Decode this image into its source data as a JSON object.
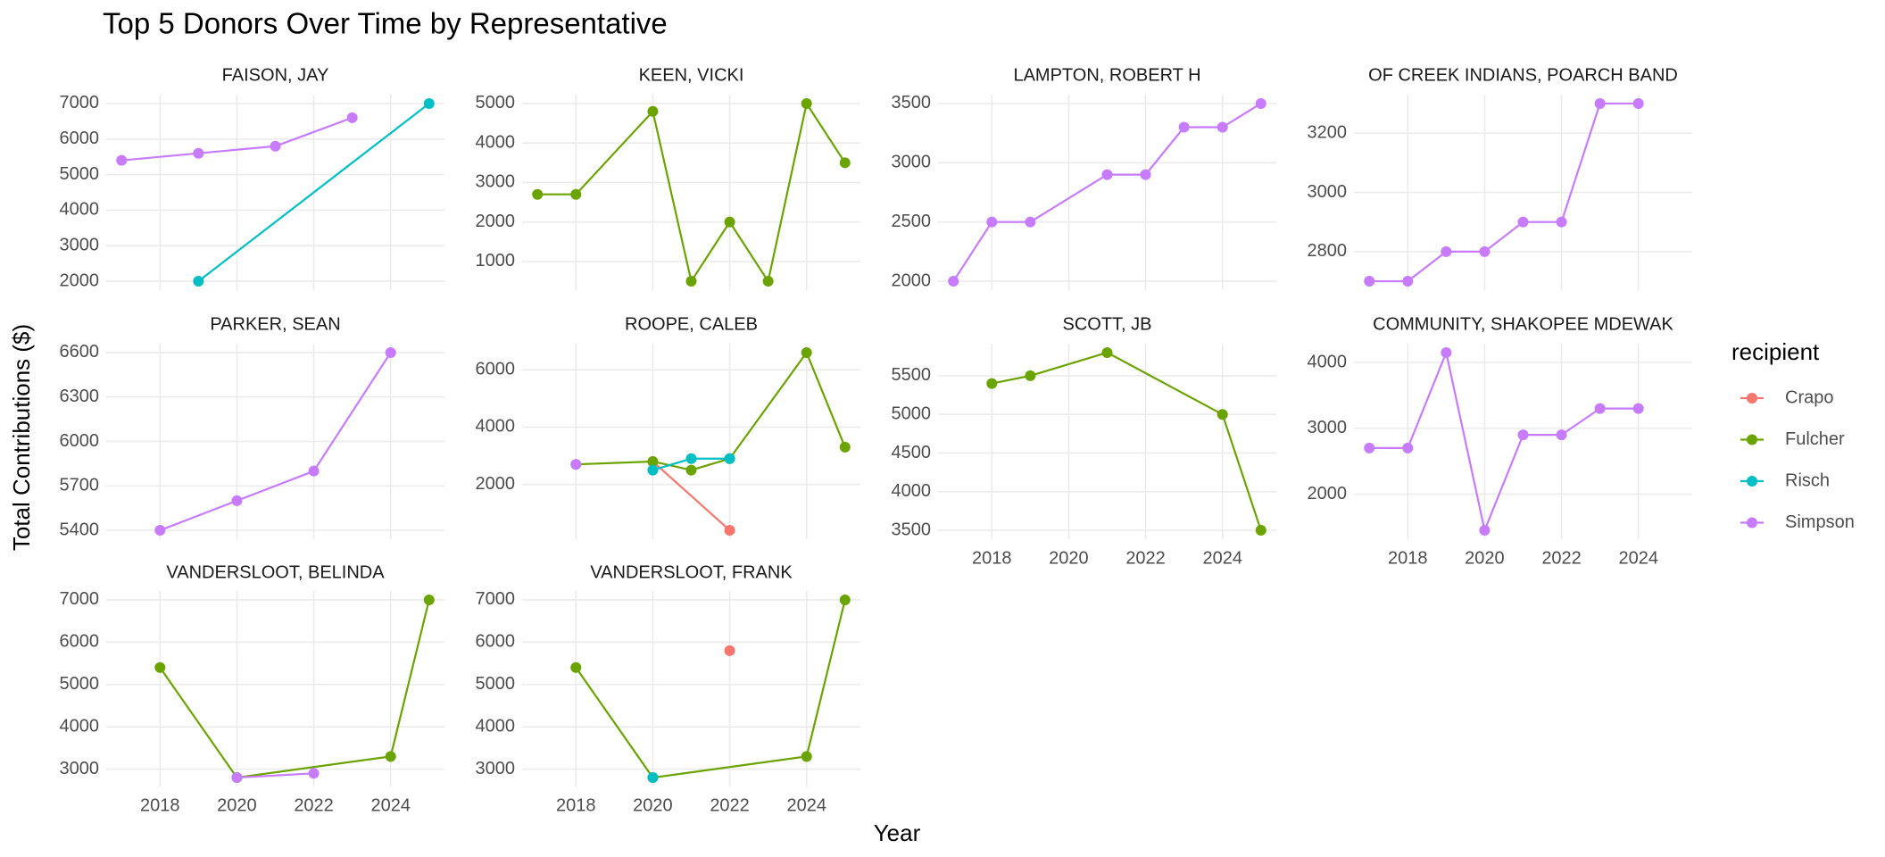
{
  "title": "Top 5 Donors Over Time by Representative",
  "xlabel": "Year",
  "ylabel": "Total Contributions ($)",
  "legend": {
    "title": "recipient",
    "items": [
      {
        "name": "Crapo",
        "color": "#F8766D"
      },
      {
        "name": "Fulcher",
        "color": "#6BA300"
      },
      {
        "name": "Risch",
        "color": "#00BFC4"
      },
      {
        "name": "Simpson",
        "color": "#C77CFF"
      }
    ]
  },
  "chart_data": [
    {
      "type": "line",
      "title": "FAISON, JAY",
      "xlim": [
        2016.6,
        2025.4
      ],
      "xticks": [
        2018,
        2020,
        2022,
        2024
      ],
      "show_xtick_labels": false,
      "ylim": [
        1750,
        7250
      ],
      "yticks": [
        2000,
        3000,
        4000,
        5000,
        6000,
        7000
      ],
      "series": [
        {
          "name": "Simpson",
          "color": "#C77CFF",
          "x": [
            2017,
            2019,
            2021,
            2023
          ],
          "values": [
            5400,
            5600,
            5800,
            6600
          ]
        },
        {
          "name": "Risch",
          "color": "#00BFC4",
          "x": [
            2019,
            2025
          ],
          "values": [
            2000,
            7000
          ]
        }
      ]
    },
    {
      "type": "line",
      "title": "KEEN, VICKI",
      "xlim": [
        2016.6,
        2025.4
      ],
      "xticks": [
        2018,
        2020,
        2022,
        2024
      ],
      "show_xtick_labels": false,
      "ylim": [
        275,
        5225
      ],
      "yticks": [
        1000,
        2000,
        3000,
        4000,
        5000
      ],
      "series": [
        {
          "name": "Fulcher",
          "color": "#6BA300",
          "x": [
            2017,
            2018,
            2020,
            2021,
            2022,
            2023,
            2024,
            2025
          ],
          "values": [
            2700,
            2700,
            4800,
            500,
            2000,
            500,
            5000,
            3500
          ]
        }
      ]
    },
    {
      "type": "line",
      "title": "LAMPTON, ROBERT H",
      "xlim": [
        2016.6,
        2025.4
      ],
      "xticks": [
        2018,
        2020,
        2022,
        2024
      ],
      "show_xtick_labels": false,
      "ylim": [
        1925,
        3575
      ],
      "yticks": [
        2000,
        2500,
        3000,
        3500
      ],
      "series": [
        {
          "name": "Simpson",
          "color": "#C77CFF",
          "x": [
            2017,
            2018,
            2019,
            2021,
            2022,
            2023,
            2024,
            2025
          ],
          "values": [
            2000,
            2500,
            2500,
            2900,
            2900,
            3300,
            3300,
            3500
          ]
        }
      ]
    },
    {
      "type": "line",
      "title": "OF CREEK INDIANS, POARCH BAND",
      "xlim": [
        2016.6,
        2025.4
      ],
      "xticks": [
        2018,
        2020,
        2022,
        2024
      ],
      "show_xtick_labels": false,
      "ylim": [
        2670,
        3330
      ],
      "yticks": [
        2800,
        3000,
        3200
      ],
      "series": [
        {
          "name": "Simpson",
          "color": "#C77CFF",
          "x": [
            2017,
            2018,
            2019,
            2020,
            2021,
            2022,
            2023,
            2024
          ],
          "values": [
            2700,
            2700,
            2800,
            2800,
            2900,
            2900,
            3300,
            3300
          ]
        }
      ]
    },
    {
      "type": "line",
      "title": "PARKER, SEAN",
      "xlim": [
        2016.6,
        2025.4
      ],
      "xticks": [
        2018,
        2020,
        2022,
        2024
      ],
      "show_xtick_labels": false,
      "ylim": [
        5340,
        6660
      ],
      "yticks": [
        5400,
        5700,
        6000,
        6300,
        6600
      ],
      "series": [
        {
          "name": "Simpson",
          "color": "#C77CFF",
          "x": [
            2018,
            2020,
            2022,
            2024
          ],
          "values": [
            5400,
            5600,
            5800,
            6600
          ]
        }
      ]
    },
    {
      "type": "line",
      "title": "ROOPE, CALEB",
      "xlim": [
        2016.6,
        2025.4
      ],
      "xticks": [
        2018,
        2020,
        2022,
        2024
      ],
      "show_xtick_labels": false,
      "ylim": [
        90,
        6910
      ],
      "yticks": [
        2000,
        4000,
        6000
      ],
      "series": [
        {
          "name": "Crapo",
          "color": "#F8766D",
          "x": [
            2020,
            2022
          ],
          "values": [
            2800,
            400
          ]
        },
        {
          "name": "Fulcher",
          "color": "#6BA300",
          "x": [
            2018,
            2020,
            2021,
            2022,
            2024,
            2025
          ],
          "values": [
            2700,
            2800,
            2500,
            2900,
            6600,
            3300
          ]
        },
        {
          "name": "Risch",
          "color": "#00BFC4",
          "x": [
            2020,
            2021,
            2022
          ],
          "values": [
            2500,
            2900,
            2900
          ]
        },
        {
          "name": "Simpson",
          "color": "#C77CFF",
          "x": [
            2018
          ],
          "values": [
            2700
          ]
        }
      ]
    },
    {
      "type": "line",
      "title": "SCOTT, JB",
      "xlim": [
        2016.6,
        2025.4
      ],
      "xticks": [
        2018,
        2020,
        2022,
        2024
      ],
      "show_xtick_labels": true,
      "ylim": [
        3385,
        5915
      ],
      "yticks": [
        3500,
        4000,
        4500,
        5000,
        5500
      ],
      "series": [
        {
          "name": "Fulcher",
          "color": "#6BA300",
          "x": [
            2018,
            2019,
            2021,
            2024,
            2025
          ],
          "values": [
            5400,
            5500,
            5800,
            5000,
            3500
          ]
        }
      ]
    },
    {
      "type": "line",
      "title": "COMMUNITY, SHAKOPEE MDEWAK",
      "xlim": [
        2016.6,
        2025.4
      ],
      "xticks": [
        2018,
        2020,
        2022,
        2024
      ],
      "show_xtick_labels": true,
      "ylim": [
        1315,
        4285
      ],
      "yticks": [
        2000,
        3000,
        4000
      ],
      "series": [
        {
          "name": "Simpson",
          "color": "#C77CFF",
          "x": [
            2017,
            2018,
            2019,
            2020,
            2021,
            2022,
            2023,
            2024
          ],
          "values": [
            2700,
            2700,
            4150,
            1450,
            2900,
            2900,
            3300,
            3300
          ]
        }
      ]
    },
    {
      "type": "line",
      "title": "VANDERSLOOT, BELINDA",
      "xlim": [
        2016.6,
        2025.4
      ],
      "xticks": [
        2018,
        2020,
        2022,
        2024
      ],
      "show_xtick_labels": true,
      "ylim": [
        2590,
        7210
      ],
      "yticks": [
        3000,
        4000,
        5000,
        6000,
        7000
      ],
      "series": [
        {
          "name": "Fulcher",
          "color": "#6BA300",
          "x": [
            2018,
            2020,
            2024,
            2025
          ],
          "values": [
            5400,
            2800,
            3300,
            7000
          ]
        },
        {
          "name": "Simpson",
          "color": "#C77CFF",
          "x": [
            2020,
            2022
          ],
          "values": [
            2800,
            2900
          ]
        }
      ]
    },
    {
      "type": "line",
      "title": "VANDERSLOOT, FRANK",
      "xlim": [
        2016.6,
        2025.4
      ],
      "xticks": [
        2018,
        2020,
        2022,
        2024
      ],
      "show_xtick_labels": true,
      "ylim": [
        2590,
        7210
      ],
      "yticks": [
        3000,
        4000,
        5000,
        6000,
        7000
      ],
      "series": [
        {
          "name": "Crapo",
          "color": "#F8766D",
          "x": [
            2022
          ],
          "values": [
            5800
          ]
        },
        {
          "name": "Fulcher",
          "color": "#6BA300",
          "x": [
            2018,
            2020,
            2024,
            2025
          ],
          "values": [
            5400,
            2800,
            3300,
            7000
          ]
        },
        {
          "name": "Risch",
          "color": "#00BFC4",
          "x": [
            2020
          ],
          "values": [
            2800
          ]
        }
      ]
    }
  ]
}
